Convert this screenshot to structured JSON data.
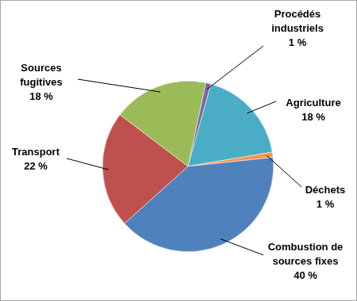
{
  "chart_data": {
    "type": "pie",
    "categories": [
      "Procédés industriels",
      "Agriculture",
      "Déchets",
      "Combustion de sources fixes",
      "Transport",
      "Sources fugitives"
    ],
    "values": [
      1,
      18,
      1,
      40,
      22,
      18
    ],
    "value_labels": [
      "1 %",
      "18 %",
      "1 %",
      "40 %",
      "22 %",
      "18 %"
    ],
    "colors": [
      "#8064a2",
      "#4bacc6",
      "#f79646",
      "#4f81bd",
      "#c0504d",
      "#9bbb59"
    ],
    "data_labels": true
  }
}
